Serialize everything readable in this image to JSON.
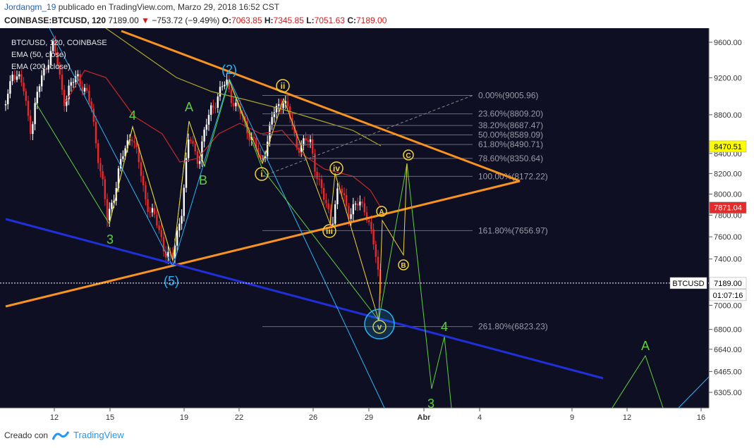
{
  "header": {
    "user": "Jordangm_19",
    "published": "publicado en TradingView.com, Marzo 29, 2018 16:52 CST",
    "symbol": "COINBASE:BTCUSD, 120",
    "last": "7189.00",
    "change": "−753.72 (−9.49%)",
    "o_label": "O:",
    "o_val": "7063.85",
    "h_label": "H:",
    "h_val": "7345.85",
    "l_label": "L:",
    "l_val": "7051.63",
    "c_label": "C:",
    "c_val": "7189.00"
  },
  "legend": {
    "title": "BTC/USD, 120, COINBASE",
    "ema50": "EMA (50, close)",
    "ema200": "EMA (200, close)"
  },
  "footer": {
    "created": "Creado con",
    "brand": "TradingView"
  },
  "colors": {
    "background": "#0f0f23",
    "bull": "#ffffff",
    "bear": "#e8292a",
    "ema50": "#c62828",
    "ema200": "#a9a62a",
    "trend_orange": "#f7931e",
    "trend_blue": "#2030d8",
    "wave_green": "#5dd13c",
    "wave_yellow": "#f2d23a",
    "wave_cyan": "#29b6f6",
    "fib_line": "#6a6a7a",
    "fib_text": "#9a9aa6"
  },
  "chart_data": {
    "type": "candlestick",
    "title": "BTC/USD, 120, COINBASE",
    "y_ticks": [
      9600,
      9200,
      8800,
      8400,
      8200,
      8000,
      7800,
      7600,
      7400,
      7000,
      6800,
      6640,
      6465,
      6305
    ],
    "y_tick_labels": [
      "9600.00",
      "9200.00",
      "8800.00",
      "8400.00",
      "8200.00",
      "8000.00",
      "7800.00",
      "7600.00",
      "7400.00",
      "7000.00",
      "6800.00",
      "6640.00",
      "6465.00",
      "6305.00"
    ],
    "x_ticks": [
      "12",
      "15",
      "19",
      "22",
      "26",
      "29",
      "Abr",
      "4",
      "9",
      "12",
      "16"
    ],
    "price_tags": [
      {
        "label": "8470.51",
        "value": 8470.51,
        "style": "yellow"
      },
      {
        "label": "7871.04",
        "value": 7871.04,
        "style": "red"
      },
      {
        "label": "7189.00",
        "value": 7189.0,
        "style": "white"
      }
    ],
    "symbol_tag": "BTCUSD",
    "countdown": "01:07:16",
    "fibonacci": [
      {
        "label": "0.00%(9005.96)",
        "value": 9005.96
      },
      {
        "label": "23.60%(8809.20)",
        "value": 8809.2
      },
      {
        "label": "38.20%(8687.47)",
        "value": 8687.47
      },
      {
        "label": "50.00%(8589.09)",
        "value": 8589.09
      },
      {
        "label": "61.80%(8490.71)",
        "value": 8490.71
      },
      {
        "label": "78.60%(8350.64)",
        "value": 8350.64
      },
      {
        "label": "100.00%(8172.22)",
        "value": 8172.22
      },
      {
        "label": "161.80%(7656.97)",
        "value": 7656.97
      },
      {
        "label": "261.80%(6823.23)",
        "value": 6823.23
      }
    ],
    "wave_labels_green": [
      "4",
      "A",
      "B",
      "3",
      "4",
      "3",
      "A"
    ],
    "wave_labels_cyan": [
      "(2)",
      "(5)"
    ],
    "wave_labels_yellow_circled": [
      "ii",
      "i",
      "iv",
      "iii",
      "v",
      "A",
      "B",
      "C"
    ],
    "grid": false,
    "log_scale": true
  }
}
